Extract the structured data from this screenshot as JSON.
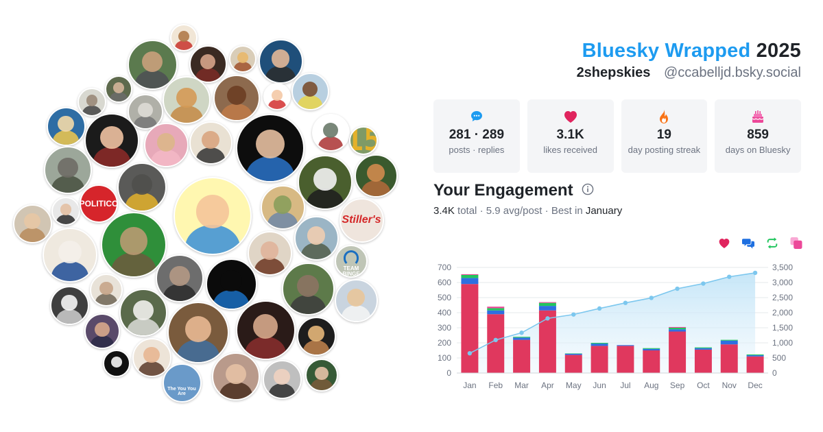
{
  "header": {
    "brand": "Bluesky Wrapped",
    "year": "2025",
    "display_name": "2shepskies",
    "handle": "@ccabelljd.bsky.social"
  },
  "stats": [
    {
      "icon": "chat-bubble-icon",
      "color": "#1d9bf0",
      "value": "281 · 289",
      "label": "posts · replies"
    },
    {
      "icon": "heart-icon",
      "color": "#e0245e",
      "value": "3.1K",
      "label": "likes received"
    },
    {
      "icon": "flame-icon",
      "color": "#f97316",
      "value": "19",
      "label": "day posting streak"
    },
    {
      "icon": "cake-icon",
      "color": "#ec4899",
      "value": "859",
      "label": "days on Bluesky"
    }
  ],
  "engagement": {
    "title": "Your Engagement",
    "total": "3.4K",
    "total_word": "total",
    "avg": "5.9 avg/post",
    "best_prefix": "Best in",
    "best_month": "January"
  },
  "legend": [
    {
      "icon": "heart-icon",
      "color": "#e0245e"
    },
    {
      "icon": "reply-icon",
      "color": "#1e6fe0"
    },
    {
      "icon": "repost-icon",
      "color": "#22c55e"
    },
    {
      "icon": "quote-icon",
      "color": "#ec4899"
    }
  ],
  "avatars": [
    {
      "label": ""
    },
    {
      "label": ""
    },
    {
      "label": ""
    },
    {
      "label": ""
    },
    {
      "label": ""
    },
    {
      "label": ""
    },
    {
      "label": ""
    },
    {
      "label": ""
    },
    {
      "label": ""
    },
    {
      "label": ""
    },
    {
      "label": ""
    },
    {
      "label": ""
    },
    {
      "label": ""
    },
    {
      "label": ""
    },
    {
      "label": ""
    },
    {
      "label": ""
    },
    {
      "label": ""
    },
    {
      "label": ""
    },
    {
      "label": "15"
    },
    {
      "label": ""
    },
    {
      "label": ""
    },
    {
      "label": ""
    },
    {
      "label": ""
    },
    {
      "label": ""
    },
    {
      "label": ""
    },
    {
      "label": "POLITICO"
    },
    {
      "label": ""
    },
    {
      "label": ""
    },
    {
      "label": ""
    },
    {
      "label": "Stiller's"
    },
    {
      "label": ""
    },
    {
      "label": ""
    },
    {
      "label": ""
    },
    {
      "label": ""
    },
    {
      "label": "TEAM BINGE"
    },
    {
      "label": ""
    },
    {
      "label": ""
    },
    {
      "label": ""
    },
    {
      "label": ""
    },
    {
      "label": ""
    },
    {
      "label": ""
    },
    {
      "label": ""
    },
    {
      "label": ""
    },
    {
      "label": ""
    },
    {
      "label": ""
    },
    {
      "label": ""
    },
    {
      "label": ""
    },
    {
      "label": ""
    },
    {
      "label": ""
    },
    {
      "label": "The You You Are"
    },
    {
      "label": ""
    },
    {
      "label": ""
    },
    {
      "label": ""
    },
    {
      "label": ""
    }
  ],
  "chart_data": {
    "type": "bar",
    "categories": [
      "Jan",
      "Feb",
      "Mar",
      "Apr",
      "May",
      "Jun",
      "Jul",
      "Aug",
      "Sep",
      "Oct",
      "Nov",
      "Dec"
    ],
    "series": [
      {
        "name": "likes",
        "color": "#e0385e",
        "values": [
          590,
          390,
          220,
          415,
          120,
          180,
          180,
          150,
          275,
          155,
          190,
          110
        ]
      },
      {
        "name": "replies",
        "color": "#2f6fe0",
        "values": [
          40,
          25,
          15,
          30,
          8,
          15,
          5,
          10,
          15,
          10,
          25,
          8
        ]
      },
      {
        "name": "reposts",
        "color": "#22c55e",
        "values": [
          20,
          15,
          5,
          20,
          2,
          5,
          0,
          5,
          10,
          5,
          5,
          5
        ]
      },
      {
        "name": "quotes",
        "color": "#ec4899",
        "values": [
          5,
          10,
          0,
          5,
          0,
          0,
          0,
          0,
          5,
          0,
          0,
          0
        ]
      }
    ],
    "cumulative": {
      "values": [
        655,
        1095,
        1335,
        1810,
        1940,
        2140,
        2325,
        2490,
        2795,
        2965,
        3190,
        3320
      ],
      "color": "#7cc7ee"
    },
    "ylim": [
      0,
      700
    ],
    "yticks": [
      "0",
      "100",
      "200",
      "300",
      "400",
      "500",
      "600",
      "700"
    ],
    "ylim_right": [
      0,
      3500
    ],
    "yticks_right": [
      "0",
      "500",
      "1,000",
      "1,500",
      "2,000",
      "2,500",
      "3,000",
      "3,500"
    ],
    "grid": true
  }
}
